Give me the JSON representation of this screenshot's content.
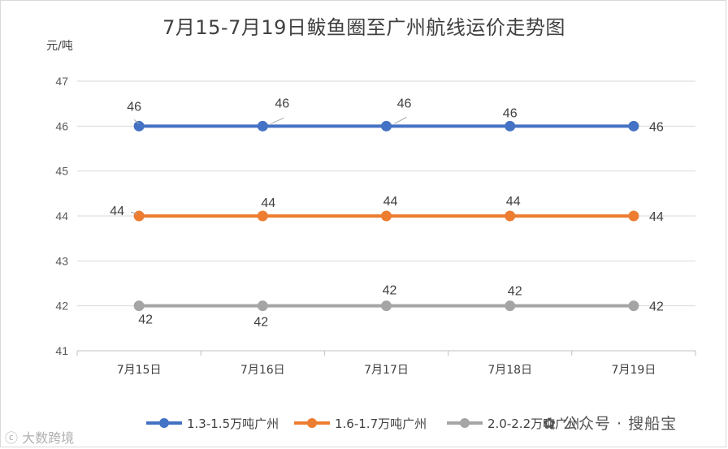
{
  "chart_data": {
    "type": "line",
    "title": "7月15-7月19日鲅鱼圈至广州航线运价走势图",
    "yunit": "元/吨",
    "ylim": [
      41,
      47
    ],
    "yticks": [
      41,
      42,
      43,
      44,
      45,
      46,
      47
    ],
    "categories": [
      "7月15日",
      "7月16日",
      "7月17日",
      "7月18日",
      "7月19日"
    ],
    "grid": true,
    "legend_position": "bottom",
    "series": [
      {
        "name": "1.3-1.5万吨广州",
        "color": "#4472C4",
        "values": [
          46,
          46,
          46,
          46,
          46
        ]
      },
      {
        "name": "1.6-1.7万吨广州",
        "color": "#ED7D31",
        "values": [
          44,
          44,
          44,
          44,
          44
        ]
      },
      {
        "name": "2.0-2.2万吨广州",
        "color": "#A5A5A5",
        "values": [
          42,
          42,
          42,
          42,
          42
        ]
      }
    ]
  },
  "watermarks": {
    "left": "大数跨境",
    "right": "公众号 · 搜船宝"
  }
}
